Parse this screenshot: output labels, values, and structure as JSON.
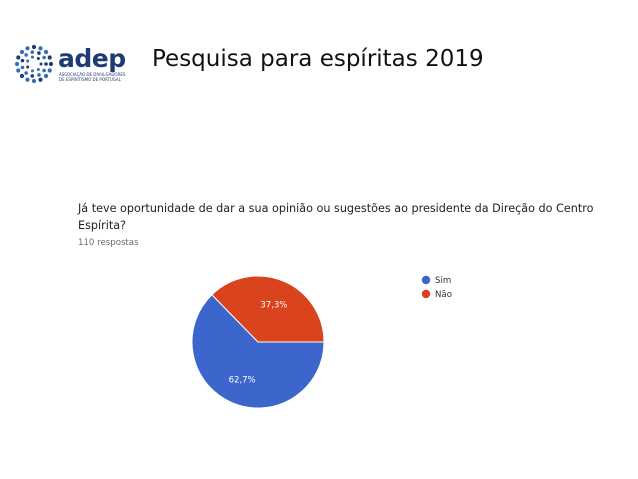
{
  "header": {
    "logo_text": "adep",
    "logo_subtitle": "ASSOCIAÇÃO DE DIVULGADORES DE ESPIRITISMO DE PORTUGAL",
    "title": "Pesquisa para espíritas  2019"
  },
  "colors": {
    "brand": "#1f3b73",
    "brand_dots": "#2f6fb2",
    "sim": "#3d66cc",
    "nao": "#d9431e"
  },
  "chart_data": {
    "type": "pie",
    "title": "Já teve oportunidade de dar a sua opinião ou sugestões ao presidente da Direção do Centro Espírita?",
    "subtitle": "110 respostas",
    "categories": [
      "Sim",
      "Não"
    ],
    "values": [
      62.7,
      37.3
    ],
    "value_labels": [
      "62,7%",
      "37,3%"
    ],
    "colors": [
      "#3d66cc",
      "#d9431e"
    ],
    "legend_position": "right"
  }
}
